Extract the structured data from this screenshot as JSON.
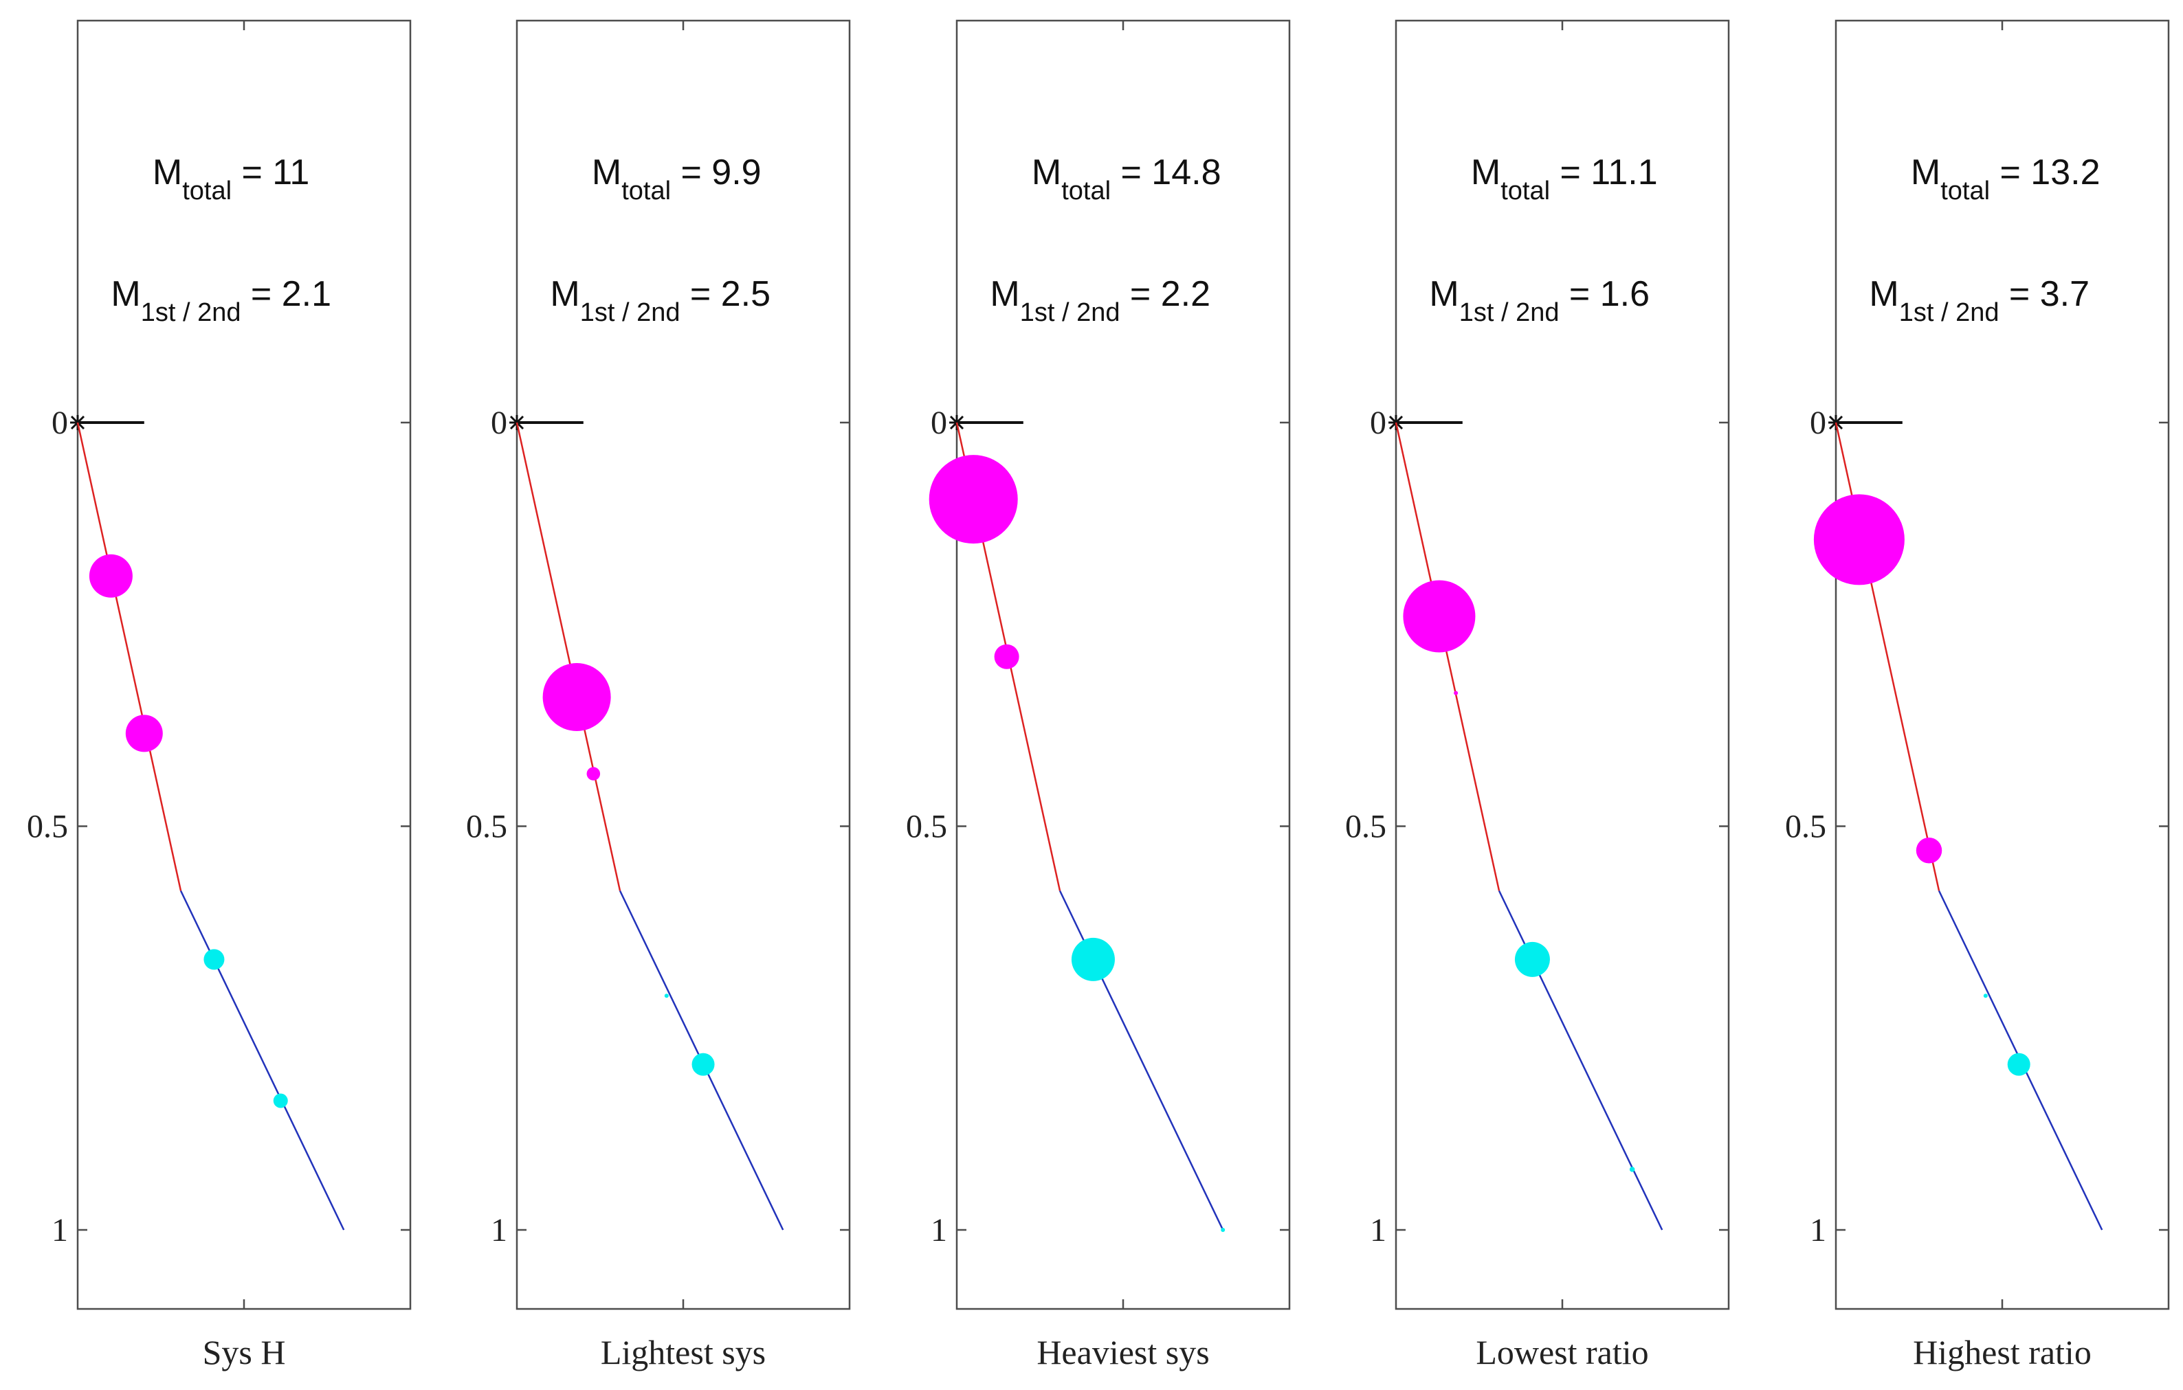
{
  "chart_data": {
    "type": "scatter",
    "y_axis": {
      "range": [
        -0.5,
        1.1
      ],
      "direction": "down",
      "ticks": [
        0,
        0.5,
        1
      ],
      "tick_labels": [
        "0",
        "0.5",
        "1"
      ]
    },
    "x_axis": {
      "range": [
        0,
        1
      ],
      "tick_labels": []
    },
    "panel_width_fraction_x_ref_end": 0.2,
    "annotation_texts": {
      "m_total_main": "M",
      "m_total_sub": "total",
      "m_ratio_main": "M",
      "m_ratio_sub": "1st / 2nd",
      "equals": " = "
    },
    "colors": {
      "upper_line": "#dd2222",
      "lower_line": "#2233bb",
      "upper_dots": "#ff00ff",
      "lower_dots": "#00eeee",
      "frame": "#4d4d4d"
    },
    "panels": [
      {
        "xlabel": "Sys H",
        "m_total": "11",
        "m_ratio": "2.1",
        "path": [
          [
            0,
            0
          ],
          [
            0.31,
            0.58
          ],
          [
            0.8,
            1.0
          ]
        ],
        "masses": [
          {
            "x": 0.1,
            "y": 0.19,
            "size": 0.42,
            "group": "upper"
          },
          {
            "x": 0.2,
            "y": 0.385,
            "size": 0.36,
            "group": "upper"
          },
          {
            "x": 0.41,
            "y": 0.665,
            "size": 0.2,
            "group": "lower"
          },
          {
            "x": 0.61,
            "y": 0.84,
            "size": 0.14,
            "group": "lower"
          }
        ]
      },
      {
        "xlabel": "Lightest sys",
        "m_total": "9.9",
        "m_ratio": "2.5",
        "path": [
          [
            0,
            0
          ],
          [
            0.31,
            0.58
          ],
          [
            0.8,
            1.0
          ]
        ],
        "masses": [
          {
            "x": 0.18,
            "y": 0.34,
            "size": 0.66,
            "group": "upper"
          },
          {
            "x": 0.23,
            "y": 0.435,
            "size": 0.13,
            "group": "upper"
          },
          {
            "x": 0.45,
            "y": 0.71,
            "size": 0.03,
            "group": "lower"
          },
          {
            "x": 0.56,
            "y": 0.795,
            "size": 0.22,
            "group": "lower"
          }
        ]
      },
      {
        "xlabel": "Heaviest sys",
        "m_total": "14.8",
        "m_ratio": "2.2",
        "path": [
          [
            0,
            0
          ],
          [
            0.31,
            0.58
          ],
          [
            0.8,
            1.0
          ]
        ],
        "masses": [
          {
            "x": 0.05,
            "y": 0.095,
            "size": 0.86,
            "group": "upper"
          },
          {
            "x": 0.15,
            "y": 0.29,
            "size": 0.24,
            "group": "upper"
          },
          {
            "x": 0.41,
            "y": 0.665,
            "size": 0.42,
            "group": "lower"
          },
          {
            "x": 0.8,
            "y": 1.0,
            "size": 0.03,
            "group": "lower"
          }
        ]
      },
      {
        "xlabel": "Lowest ratio",
        "m_total": "11.1",
        "m_ratio": "1.6",
        "path": [
          [
            0,
            0
          ],
          [
            0.31,
            0.58
          ],
          [
            0.8,
            1.0
          ]
        ],
        "masses": [
          {
            "x": 0.13,
            "y": 0.24,
            "size": 0.7,
            "group": "upper"
          },
          {
            "x": 0.18,
            "y": 0.335,
            "size": 0.03,
            "group": "upper"
          },
          {
            "x": 0.41,
            "y": 0.665,
            "size": 0.34,
            "group": "lower"
          },
          {
            "x": 0.71,
            "y": 0.925,
            "size": 0.05,
            "group": "lower"
          }
        ]
      },
      {
        "xlabel": "Highest ratio",
        "m_total": "13.2",
        "m_ratio": "3.7",
        "path": [
          [
            0,
            0
          ],
          [
            0.31,
            0.58
          ],
          [
            0.8,
            1.0
          ]
        ],
        "masses": [
          {
            "x": 0.07,
            "y": 0.145,
            "size": 0.88,
            "group": "upper"
          },
          {
            "x": 0.28,
            "y": 0.53,
            "size": 0.25,
            "group": "upper"
          },
          {
            "x": 0.45,
            "y": 0.71,
            "size": 0.03,
            "group": "lower"
          },
          {
            "x": 0.55,
            "y": 0.795,
            "size": 0.22,
            "group": "lower"
          }
        ]
      }
    ]
  }
}
